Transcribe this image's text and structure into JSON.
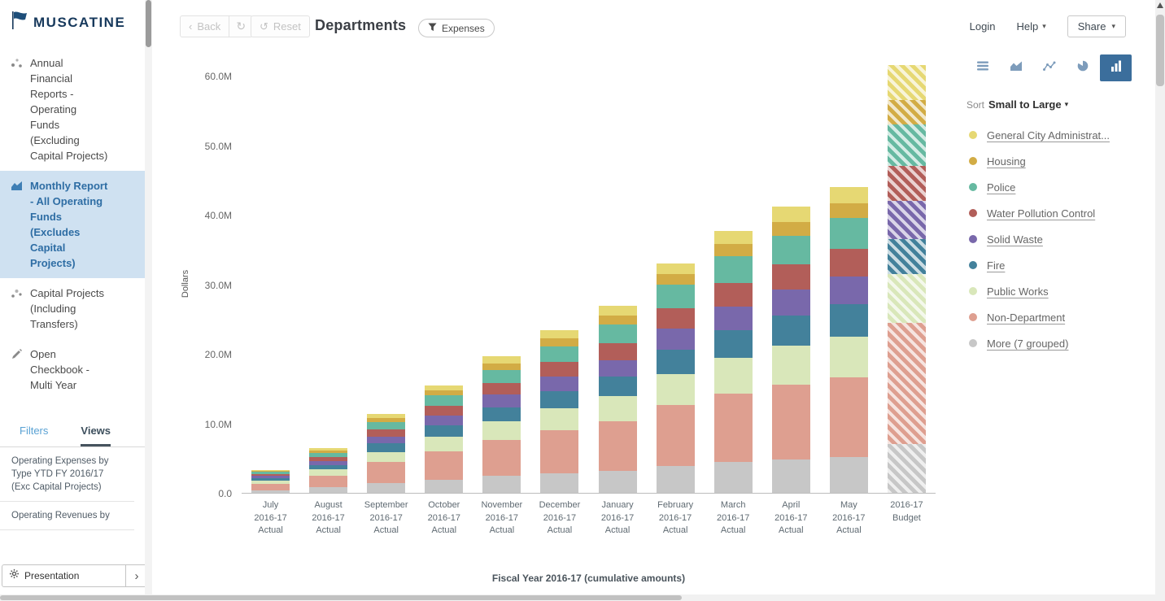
{
  "icons": {
    "caret_down": "▾",
    "chevron_left": "‹",
    "chevron_right": "›",
    "reset": "↺",
    "refresh": "↻"
  },
  "sidebar": {
    "logo_text": "MUSCATINE",
    "items": [
      {
        "label": "Annual Financial Reports - Operating Funds (Excluding Capital Projects)"
      },
      {
        "label": "Monthly Report - All Operating Funds (Excludes Capital Projects)",
        "selected": true
      },
      {
        "label": "Capital Projects (Including Transfers)"
      },
      {
        "label": "Open Checkbook - Multi Year"
      }
    ],
    "tabs": [
      {
        "label": "Filters"
      },
      {
        "label": "Views",
        "active": true
      }
    ],
    "views": [
      "Operating Expenses by Type YTD FY 2016/17 (Exc Capital Projects)",
      "Operating Revenues by"
    ],
    "presentation_label": "Presentation"
  },
  "toolbar": {
    "back_label": "Back",
    "reset_label": "Reset",
    "title": "Departments",
    "filter_chip": "Expenses",
    "login_label": "Login",
    "help_label": "Help",
    "share_label": "Share"
  },
  "panel": {
    "sort_label": "Sort",
    "sort_value": "Small to Large",
    "chart_types": [
      "table",
      "area",
      "line",
      "pie",
      "bar"
    ],
    "selected_chart_type": "bar",
    "legend": [
      {
        "label": "General City Administrat...",
        "color": "#e6d873"
      },
      {
        "label": "Housing",
        "color": "#d2ac45"
      },
      {
        "label": "Police",
        "color": "#66b9a1"
      },
      {
        "label": "Water Pollution Control",
        "color": "#b25e59"
      },
      {
        "label": "Solid Waste",
        "color": "#7968ab"
      },
      {
        "label": "Fire",
        "color": "#43819b"
      },
      {
        "label": "Public Works",
        "color": "#d9e7ba"
      },
      {
        "label": "Non-Department",
        "color": "#de9f90"
      },
      {
        "label": "More (7 grouped)",
        "color": "#c7c7c7"
      }
    ]
  },
  "chart_data": {
    "type": "bar",
    "stacked": true,
    "unit": "millions of dollars",
    "ylabel": "Dollars",
    "xlabel": "Fiscal Year 2016-17 (cumulative amounts)",
    "ylim": [
      0,
      60
    ],
    "grid": false,
    "legend_position": "right",
    "y_ticks": [
      {
        "value": 0,
        "label": "0.0"
      },
      {
        "value": 10,
        "label": "10.0M"
      },
      {
        "value": 20,
        "label": "20.0M"
      },
      {
        "value": 30,
        "label": "30.0M"
      },
      {
        "value": 40,
        "label": "40.0M"
      },
      {
        "value": 50,
        "label": "50.0M"
      },
      {
        "value": 60,
        "label": "60.0M"
      }
    ],
    "categories": [
      {
        "lines": [
          "July",
          "2016-17",
          "Actual"
        ],
        "hatched": false
      },
      {
        "lines": [
          "August",
          "2016-17",
          "Actual"
        ],
        "hatched": false
      },
      {
        "lines": [
          "September",
          "2016-17",
          "Actual"
        ],
        "hatched": false
      },
      {
        "lines": [
          "October",
          "2016-17",
          "Actual"
        ],
        "hatched": false
      },
      {
        "lines": [
          "November",
          "2016-17",
          "Actual"
        ],
        "hatched": false
      },
      {
        "lines": [
          "December",
          "2016-17",
          "Actual"
        ],
        "hatched": false
      },
      {
        "lines": [
          "January",
          "2016-17",
          "Actual"
        ],
        "hatched": false
      },
      {
        "lines": [
          "February",
          "2016-17",
          "Actual"
        ],
        "hatched": false
      },
      {
        "lines": [
          "March",
          "2016-17",
          "Actual"
        ],
        "hatched": false
      },
      {
        "lines": [
          "April",
          "2016-17",
          "Actual"
        ],
        "hatched": false
      },
      {
        "lines": [
          "May",
          "2016-17",
          "Actual"
        ],
        "hatched": false
      },
      {
        "lines": [
          "2016-17",
          "Budget"
        ],
        "hatched": true
      }
    ],
    "series": [
      {
        "name": "More (7 grouped)",
        "color": "#c7c7c7",
        "values": [
          0.4,
          0.8,
          1.4,
          1.9,
          2.4,
          2.8,
          3.2,
          3.9,
          4.4,
          4.8,
          5.2,
          7.0
        ]
      },
      {
        "name": "Non-Department",
        "color": "#de9f90",
        "values": [
          0.9,
          1.7,
          3.0,
          4.1,
          5.2,
          6.2,
          7.1,
          8.7,
          9.9,
          10.8,
          11.4,
          17.5
        ]
      },
      {
        "name": "Public Works",
        "color": "#d9e7ba",
        "values": [
          0.45,
          0.85,
          1.5,
          2.1,
          2.7,
          3.2,
          3.6,
          4.5,
          5.1,
          5.6,
          5.9,
          7.0
        ]
      },
      {
        "name": "Fire",
        "color": "#43819b",
        "values": [
          0.35,
          0.65,
          1.2,
          1.6,
          2.0,
          2.4,
          2.8,
          3.5,
          4.0,
          4.3,
          4.6,
          5.0
        ]
      },
      {
        "name": "Solid Waste",
        "color": "#7968ab",
        "values": [
          0.3,
          0.6,
          1.0,
          1.4,
          1.8,
          2.1,
          2.4,
          3.0,
          3.4,
          3.7,
          4.0,
          5.5
        ]
      },
      {
        "name": "Water Pollution Control",
        "color": "#b25e59",
        "values": [
          0.3,
          0.55,
          1.0,
          1.4,
          1.7,
          2.1,
          2.4,
          3.0,
          3.4,
          3.7,
          4.0,
          5.0
        ]
      },
      {
        "name": "Police",
        "color": "#66b9a1",
        "values": [
          0.3,
          0.6,
          1.1,
          1.5,
          1.9,
          2.3,
          2.7,
          3.3,
          3.8,
          4.1,
          4.4,
          6.0
        ]
      },
      {
        "name": "Housing",
        "color": "#d2ac45",
        "values": [
          0.15,
          0.3,
          0.55,
          0.7,
          0.95,
          1.1,
          1.3,
          1.6,
          1.8,
          2.0,
          2.1,
          3.5
        ]
      },
      {
        "name": "General City Administrat...",
        "color": "#e6d873",
        "values": [
          0.15,
          0.35,
          0.65,
          0.8,
          1.05,
          1.2,
          1.4,
          1.5,
          1.9,
          2.2,
          2.4,
          5.0
        ]
      }
    ]
  }
}
